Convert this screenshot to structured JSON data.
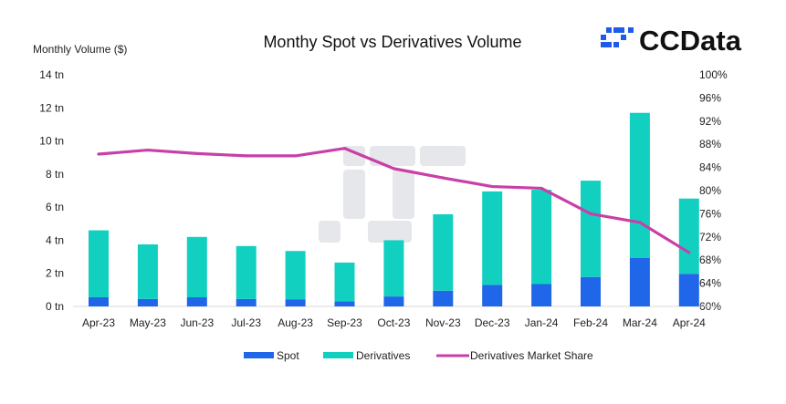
{
  "logo": {
    "text": "CCData",
    "color": "#1f5bea"
  },
  "chart_data": {
    "type": "bar",
    "title": "Monthy Spot vs Derivatives Volume",
    "ylabel": "Monthly Volume ($)",
    "categories": [
      "Apr-23",
      "May-23",
      "Jun-23",
      "Jul-23",
      "Aug-23",
      "Sep-23",
      "Oct-23",
      "Nov-23",
      "Dec-23",
      "Jan-24",
      "Feb-24",
      "Mar-24",
      "Apr-24"
    ],
    "ylim": [
      0,
      14
    ],
    "yticks": [
      "0 tn",
      "2 tn",
      "4 tn",
      "6 tn",
      "8 tn",
      "10 tn",
      "12 tn",
      "14 tn"
    ],
    "y2lim": [
      60,
      100
    ],
    "y2ticks": [
      "60%",
      "64%",
      "68%",
      "72%",
      "76%",
      "80%",
      "84%",
      "88%",
      "92%",
      "96%",
      "100%"
    ],
    "stacked": true,
    "series": [
      {
        "name": "Spot",
        "type": "bar",
        "color": "#1f66e8",
        "values": [
          0.55,
          0.45,
          0.55,
          0.45,
          0.43,
          0.3,
          0.6,
          0.95,
          1.3,
          1.35,
          1.78,
          2.94,
          1.97
        ]
      },
      {
        "name": "Derivatives",
        "type": "bar",
        "color": "#12d0c0",
        "values": [
          4.05,
          3.3,
          3.65,
          3.2,
          2.92,
          2.35,
          3.4,
          4.62,
          5.65,
          5.7,
          5.82,
          8.76,
          4.55
        ]
      },
      {
        "name": "Derivatives Market Share",
        "type": "line",
        "axis": "right",
        "color": "#c93fa8",
        "values": [
          86.3,
          87.0,
          86.4,
          86.0,
          86.0,
          87.3,
          83.8,
          82.2,
          80.7,
          80.4,
          76.0,
          74.5,
          69.3
        ]
      }
    ],
    "grid": false,
    "legend": "bottom"
  }
}
